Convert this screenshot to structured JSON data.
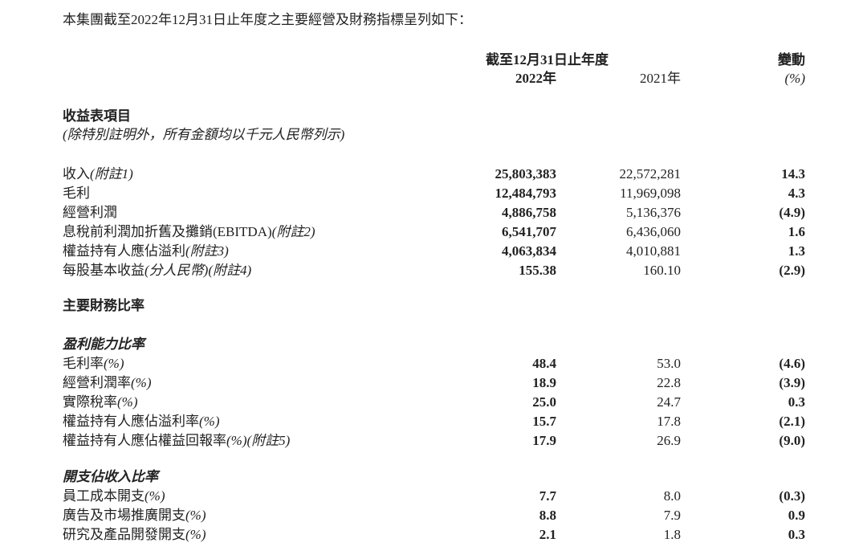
{
  "intro": "本集團截至2022年12月31日止年度之主要經營及財務指標呈列如下：",
  "header": {
    "period": "截至12月31日止年度",
    "year_2022": "2022年",
    "year_2021": "2021年",
    "change": "變動",
    "change_unit": "(%)"
  },
  "income": {
    "title": "收益表項目",
    "note": "(除特別註明外，所有金額均以千元人民幣列示)",
    "rows": [
      {
        "label": "收入",
        "note": "(附註1)",
        "y2022": "25,803,383",
        "y2021": "22,572,281",
        "change": "14.3"
      },
      {
        "label": "毛利",
        "note": "",
        "y2022": "12,484,793",
        "y2021": "11,969,098",
        "change": "4.3"
      },
      {
        "label": "經營利潤",
        "note": "",
        "y2022": "4,886,758",
        "y2021": "5,136,376",
        "change": "(4.9)"
      },
      {
        "label": "息稅前利潤加折舊及攤銷(EBITDA)",
        "note": "(附註2)",
        "y2022": "6,541,707",
        "y2021": "6,436,060",
        "change": "1.6"
      },
      {
        "label": "權益持有人應佔溢利",
        "note": "(附註3)",
        "y2022": "4,063,834",
        "y2021": "4,010,881",
        "change": "1.3"
      },
      {
        "label": "每股基本收益",
        "note": "(分人民幣)(附註4)",
        "y2022": "155.38",
        "y2021": "160.10",
        "change": "(2.9)"
      }
    ]
  },
  "ratios_title": "主要財務比率",
  "profitability": {
    "title": "盈利能力比率",
    "rows": [
      {
        "label": "毛利率",
        "note": "(%)",
        "y2022": "48.4",
        "y2021": "53.0",
        "change": "(4.6)"
      },
      {
        "label": "經營利潤率",
        "note": "(%)",
        "y2022": "18.9",
        "y2021": "22.8",
        "change": "(3.9)"
      },
      {
        "label": "實際稅率",
        "note": "(%)",
        "y2022": "25.0",
        "y2021": "24.7",
        "change": "0.3"
      },
      {
        "label": "權益持有人應佔溢利率",
        "note": "(%)",
        "y2022": "15.7",
        "y2021": "17.8",
        "change": "(2.1)"
      },
      {
        "label": "權益持有人應佔權益回報率",
        "note": "(%)(附註5)",
        "y2022": "17.9",
        "y2021": "26.9",
        "change": "(9.0)"
      }
    ]
  },
  "expenses": {
    "title": "開支佔收入比率",
    "rows": [
      {
        "label": "員工成本開支",
        "note": "(%)",
        "y2022": "7.7",
        "y2021": "8.0",
        "change": "(0.3)"
      },
      {
        "label": "廣告及市場推廣開支",
        "note": "(%)",
        "y2022": "8.8",
        "y2021": "7.9",
        "change": "0.9"
      },
      {
        "label": "研究及產品開發開支",
        "note": "(%)",
        "y2022": "2.1",
        "y2021": "1.8",
        "change": "0.3"
      }
    ]
  }
}
